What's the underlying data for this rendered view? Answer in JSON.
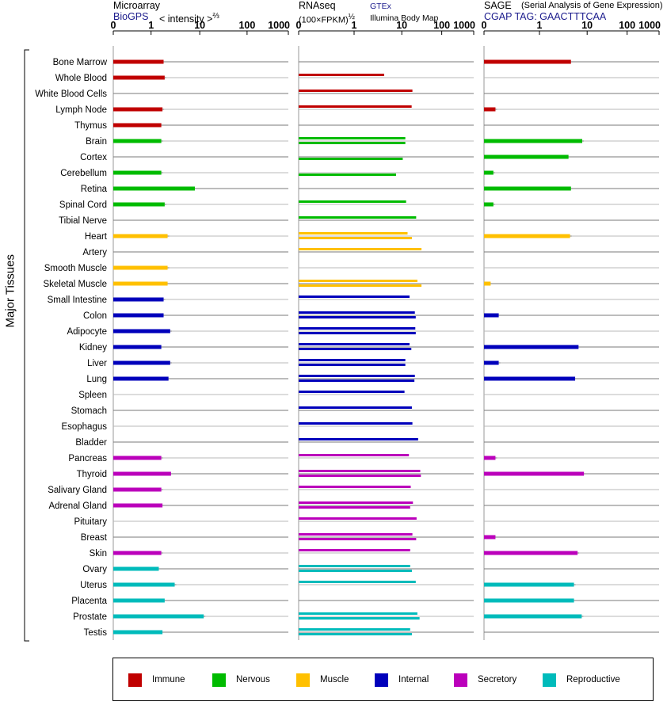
{
  "panels": {
    "microarray": {
      "title": "Microarray",
      "source": "BioGPS",
      "scale_label": "< intensity >",
      "scale_power": "⅔"
    },
    "rnaseq": {
      "title": "RNAseq",
      "scale_label": "(100×FPKM)",
      "scale_power": "½",
      "source1": "GTEx",
      "source2": "Illumina Body Map"
    },
    "sage": {
      "title": "SAGE",
      "subtitle": "(Serial Analysis of Gene Expression)",
      "source": "CGAP TAG: GAACTTTCAA"
    }
  },
  "y_axis_label": "Major Tissues",
  "colors": {
    "Immune": "#c00000",
    "Nervous": "#00bb00",
    "Muscle": "#ffc000",
    "Internal": "#0000bb",
    "Secretory": "#bb00bb",
    "Reproductive": "#00bbbb"
  },
  "legend": [
    {
      "label": "Immune",
      "color": "#c00000"
    },
    {
      "label": "Nervous",
      "color": "#00bb00"
    },
    {
      "label": "Muscle",
      "color": "#ffc000"
    },
    {
      "label": "Internal",
      "color": "#0000bb"
    },
    {
      "label": "Secretory",
      "color": "#bb00bb"
    },
    {
      "label": "Reproductive",
      "color": "#00bbbb"
    }
  ],
  "chart_data": {
    "type": "bar",
    "axis_ticks": [
      "0",
      "1",
      "10",
      "100",
      "1000"
    ],
    "xlim": [
      0,
      1000
    ],
    "categories": [
      "Bone Marrow",
      "Whole Blood",
      "White Blood Cells",
      "Lymph Node",
      "Thymus",
      "Brain",
      "Cortex",
      "Cerebellum",
      "Retina",
      "Spinal Cord",
      "Tibial Nerve",
      "Heart",
      "Artery",
      "Smooth Muscle",
      "Skeletal Muscle",
      "Small Intestine",
      "Colon",
      "Adipocyte",
      "Kidney",
      "Liver",
      "Lung",
      "Spleen",
      "Stomach",
      "Esophagus",
      "Bladder",
      "Pancreas",
      "Thyroid",
      "Salivary Gland",
      "Adrenal Gland",
      "Pituitary",
      "Breast",
      "Skin",
      "Ovary",
      "Uterus",
      "Placenta",
      "Prostate",
      "Testis"
    ],
    "groups": [
      "Immune",
      "Immune",
      "Immune",
      "Immune",
      "Immune",
      "Nervous",
      "Nervous",
      "Nervous",
      "Nervous",
      "Nervous",
      "Nervous",
      "Muscle",
      "Muscle",
      "Muscle",
      "Muscle",
      "Internal",
      "Internal",
      "Internal",
      "Internal",
      "Internal",
      "Internal",
      "Internal",
      "Internal",
      "Internal",
      "Internal",
      "Secretory",
      "Secretory",
      "Secretory",
      "Secretory",
      "Secretory",
      "Secretory",
      "Secretory",
      "Reproductive",
      "Reproductive",
      "Reproductive",
      "Reproductive",
      "Reproductive"
    ],
    "series": [
      {
        "name": "Microarray",
        "values": [
          1.9,
          2.0,
          null,
          1.8,
          1.7,
          1.7,
          null,
          1.7,
          8.0,
          2.0,
          null,
          2.3,
          null,
          2.3,
          2.3,
          1.9,
          1.9,
          2.6,
          1.7,
          2.6,
          2.4,
          null,
          null,
          null,
          null,
          1.7,
          2.7,
          1.7,
          1.8,
          null,
          null,
          1.7,
          1.5,
          3.2,
          2.0,
          12.0,
          1.8
        ]
      },
      {
        "name": "GTEx",
        "values": [
          null,
          4.2,
          17.5,
          16.8,
          null,
          12.0,
          null,
          null,
          null,
          12.5,
          21.5,
          13.5,
          29.0,
          null,
          23.0,
          15.0,
          20.0,
          20.5,
          15.0,
          12.0,
          20.0,
          11.5,
          17.0,
          17.5,
          24.0,
          14.5,
          27.0,
          16.0,
          18.0,
          22.0,
          17.5,
          15.5,
          15.5,
          21.0,
          null,
          23.0,
          15.5
        ]
      },
      {
        "name": "Illumina Body Map",
        "values": [
          null,
          null,
          null,
          null,
          null,
          12.0,
          10.5,
          7.5,
          null,
          null,
          null,
          17.0,
          null,
          null,
          29.0,
          null,
          21.0,
          21.0,
          16.5,
          12.0,
          19.5,
          null,
          null,
          null,
          null,
          null,
          28.0,
          null,
          15.5,
          null,
          21.5,
          null,
          17.0,
          null,
          null,
          26.0,
          17.0
        ]
      },
      {
        "name": "SAGE",
        "values": [
          4.5,
          null,
          null,
          0.03,
          null,
          7.8,
          4.0,
          0.02,
          4.5,
          0.02,
          null,
          4.3,
          null,
          null,
          0.01,
          null,
          0.05,
          null,
          6.5,
          0.05,
          5.5,
          null,
          null,
          null,
          null,
          0.03,
          8.5,
          null,
          null,
          null,
          0.03,
          6.2,
          null,
          5.2,
          5.2,
          7.6,
          null
        ]
      }
    ]
  }
}
